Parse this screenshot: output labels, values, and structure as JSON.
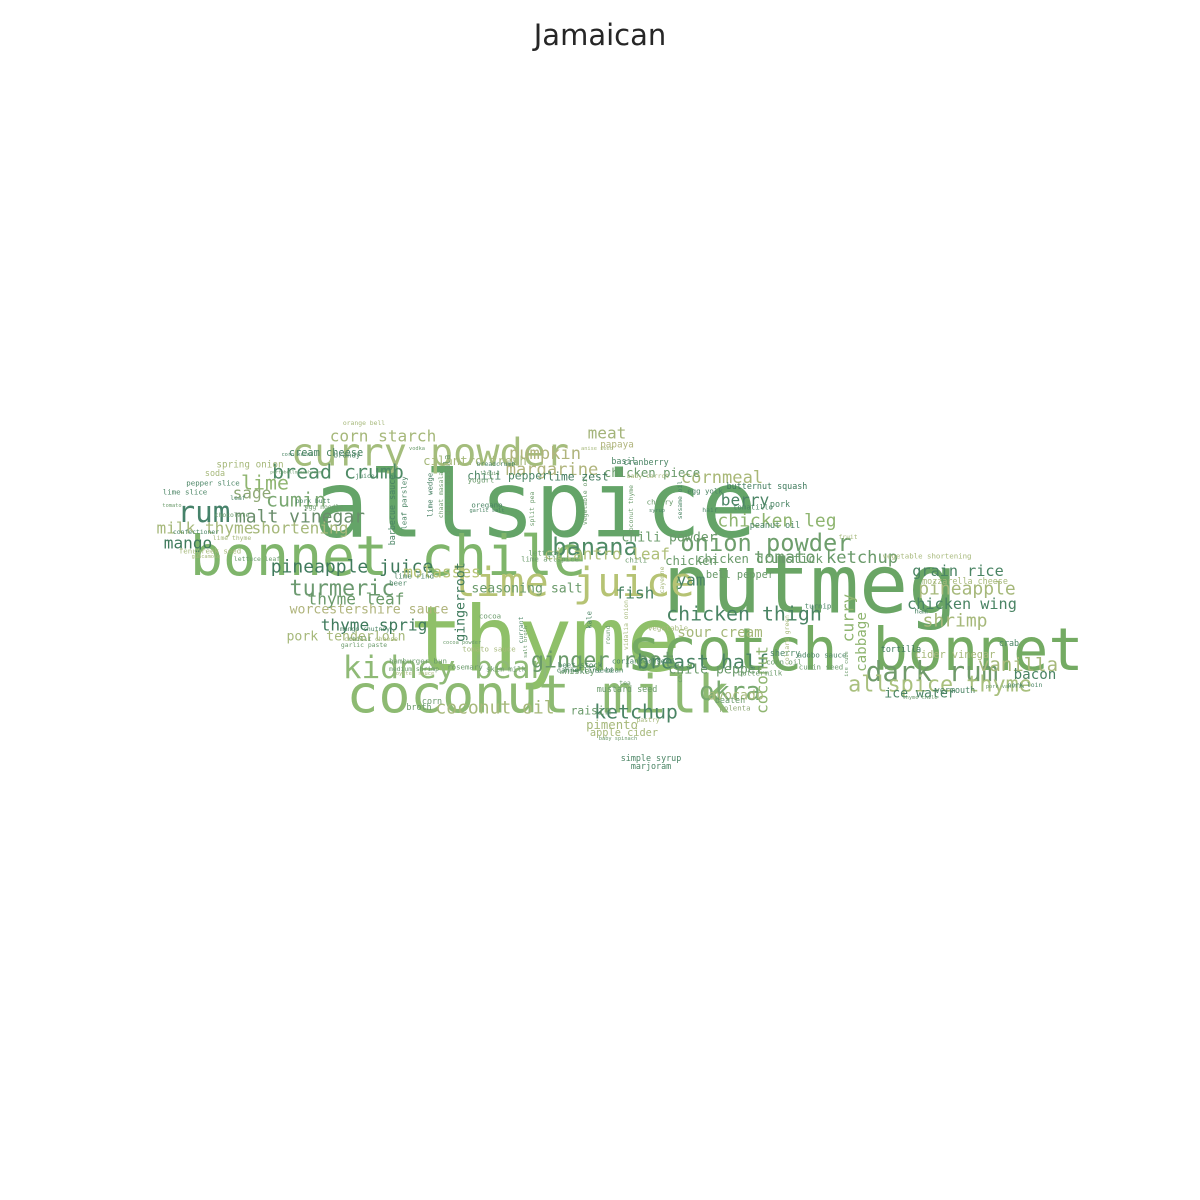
{
  "title": "Jamaican",
  "palette": [
    "#3f7a5c",
    "#5e9e62",
    "#74aa6a",
    "#8fba76",
    "#a6c27f",
    "#b9bf82",
    "#95b66e",
    "#4f8b66"
  ],
  "words": [
    {
      "text": "allspice",
      "weight": 100,
      "color": "#64a468"
    },
    {
      "text": "thyme",
      "weight": 98,
      "color": "#8fc069"
    },
    {
      "text": "nutmeg",
      "weight": 88,
      "color": "#6aa565"
    },
    {
      "text": "scotch bonnet",
      "weight": 62,
      "color": "#74ab63"
    },
    {
      "text": "bonnet chile",
      "weight": 58,
      "color": "#7fb56b"
    },
    {
      "text": "coconut milk",
      "weight": 56,
      "color": "#8dba72"
    },
    {
      "text": "lime juice",
      "weight": 42,
      "color": "#b6c374"
    },
    {
      "text": "curry powder",
      "weight": 40,
      "color": "#a4bd7c"
    },
    {
      "text": "kidney bean",
      "weight": 32,
      "color": "#8fba76"
    },
    {
      "text": "dark rum",
      "weight": 28,
      "color": "#6f9a6a"
    },
    {
      "text": "rum",
      "weight": 30,
      "color": "#46826a"
    },
    {
      "text": "okra",
      "weight": 26,
      "color": "#79aa70"
    },
    {
      "text": "onion powder",
      "weight": 24,
      "color": "#6e9e6c"
    },
    {
      "text": "banana",
      "weight": 24,
      "color": "#4f8b66"
    },
    {
      "text": "ginger root",
      "weight": 22,
      "color": "#6a9a6a"
    },
    {
      "text": "turmeric",
      "weight": 22,
      "color": "#6c9a70"
    },
    {
      "text": "allspice thyme",
      "weight": 22,
      "color": "#a9c07e"
    },
    {
      "text": "bread crumb",
      "weight": 20,
      "color": "#4f8b66"
    },
    {
      "text": "cumin",
      "weight": 20,
      "color": "#7aa872"
    },
    {
      "text": "lime",
      "weight": 20,
      "color": "#8fb570"
    },
    {
      "text": "breast half",
      "weight": 20,
      "color": "#4a8464"
    },
    {
      "text": "chicken thigh",
      "weight": 20,
      "color": "#4a8464"
    },
    {
      "text": "ketchup",
      "weight": 20,
      "color": "#4a8464"
    },
    {
      "text": "vanilla",
      "weight": 19,
      "color": "#a6b87a"
    },
    {
      "text": "chicken leg",
      "weight": 18,
      "color": "#8fb570"
    },
    {
      "text": "malt vinegar",
      "weight": 18,
      "color": "#6a8e6c"
    },
    {
      "text": "pineapple juice",
      "weight": 18,
      "color": "#3f7a5c"
    },
    {
      "text": "pineapple",
      "weight": 18,
      "color": "#a6b87a"
    },
    {
      "text": "shrimp",
      "weight": 18,
      "color": "#a6b87a"
    },
    {
      "text": "coconut oil",
      "weight": 18,
      "color": "#a6b87a"
    },
    {
      "text": "tomato ketchup",
      "weight": 17,
      "color": "#6a9a6a"
    },
    {
      "text": "cornmeal",
      "weight": 17,
      "color": "#a9b877"
    },
    {
      "text": "margarine",
      "weight": 17,
      "color": "#b0b47c"
    },
    {
      "text": "pumpkin",
      "weight": 17,
      "color": "#b0b47c"
    },
    {
      "text": "corn starch",
      "weight": 16,
      "color": "#a6b87a"
    },
    {
      "text": "molasses",
      "weight": 16,
      "color": "#b6c374"
    },
    {
      "text": "cilantro leaf",
      "weight": 16,
      "color": "#b0c07a"
    },
    {
      "text": "sage",
      "weight": 16,
      "color": "#8fa876"
    },
    {
      "text": "milk thyme",
      "weight": 16,
      "color": "#a6b87a"
    },
    {
      "text": "shortening",
      "weight": 16,
      "color": "#a6b87a"
    },
    {
      "text": "thyme leaf",
      "weight": 16,
      "color": "#6a9a6a"
    },
    {
      "text": "thyme sprig",
      "weight": 16,
      "color": "#3f7a5c"
    },
    {
      "text": "mango",
      "weight": 16,
      "color": "#3f7a5c"
    },
    {
      "text": "berry",
      "weight": 16,
      "color": "#4a8464"
    },
    {
      "text": "yam",
      "weight": 16,
      "color": "#4a8464"
    },
    {
      "text": "fish",
      "weight": 16,
      "color": "#4a8464"
    },
    {
      "text": "meat",
      "weight": 16,
      "color": "#a4b47a"
    },
    {
      "text": "coconut",
      "weight": 16,
      "color": "#8fb570"
    },
    {
      "text": "curry",
      "weight": 16,
      "color": "#8fb570"
    },
    {
      "text": "cabbage",
      "weight": 14,
      "color": "#8fb570"
    },
    {
      "text": "chicken wing",
      "weight": 15,
      "color": "#4a8464"
    },
    {
      "text": "grain rice",
      "weight": 15,
      "color": "#4a8464"
    },
    {
      "text": "bacon",
      "weight": 14,
      "color": "#4a8464"
    },
    {
      "text": "sour cream",
      "weight": 14,
      "color": "#a6b87a"
    },
    {
      "text": "chili powder",
      "weight": 13,
      "color": "#6a9a6a"
    },
    {
      "text": "chile pepper",
      "weight": 13,
      "color": "#6a9a6a"
    },
    {
      "text": "avocado",
      "weight": 13,
      "color": "#a6b87a"
    },
    {
      "text": "seasoning salt",
      "weight": 13,
      "color": "#6a9a6a"
    },
    {
      "text": "pork tenderloin",
      "weight": 13,
      "color": "#a6b87a"
    },
    {
      "text": "worcestershire sauce",
      "weight": 13,
      "color": "#b0b47c"
    },
    {
      "text": "ice water",
      "weight": 13,
      "color": "#4a8464"
    },
    {
      "text": "pimento",
      "weight": 12,
      "color": "#a6b87a"
    },
    {
      "text": "chicken drumstick",
      "weight": 12,
      "color": "#6a9a6a"
    },
    {
      "text": "chicken",
      "weight": 12,
      "color": "#6a9a6a"
    },
    {
      "text": "cilantro fresh",
      "weight": 12,
      "color": "#a6b87a"
    },
    {
      "text": "chicken piece",
      "weight": 12,
      "color": "#6a9a6a"
    },
    {
      "text": "gingerroot",
      "weight": 13,
      "color": "#3f7a5c"
    },
    {
      "text": "chili pepper",
      "weight": 11,
      "color": "#4a8464"
    },
    {
      "text": "lime zest",
      "weight": 11,
      "color": "#3f7a5c"
    },
    {
      "text": "raisin",
      "weight": 11,
      "color": "#6a9a6a"
    },
    {
      "text": "apple cider",
      "weight": 10,
      "color": "#a6b87a"
    },
    {
      "text": "cider vinegar",
      "weight": 10,
      "color": "#a6b87a"
    },
    {
      "text": "bell pepper",
      "weight": 10,
      "color": "#6a9a6a"
    },
    {
      "text": "cream cheese",
      "weight": 10,
      "color": "#4a8464"
    },
    {
      "text": "garam masala",
      "weight": 8,
      "color": "#6a9a6a"
    },
    {
      "text": "spring onion",
      "weight": 9,
      "color": "#a6b87a"
    },
    {
      "text": "papaya",
      "weight": 9,
      "color": "#b0b47c"
    },
    {
      "text": "cranberry",
      "weight": 8,
      "color": "#4a8464"
    },
    {
      "text": "vermouth",
      "weight": 8,
      "color": "#4a8464"
    },
    {
      "text": "whiskey",
      "weight": 8,
      "color": "#6a9a6a"
    },
    {
      "text": "broth",
      "weight": 8,
      "color": "#6a9a6a"
    },
    {
      "text": "corn",
      "weight": 8,
      "color": "#6a9a6a"
    },
    {
      "text": "marjoram",
      "weight": 8,
      "color": "#4a8464"
    },
    {
      "text": "simple syrup",
      "weight": 8,
      "color": "#4a8464"
    },
    {
      "text": "soda",
      "weight": 8,
      "color": "#a6b87a"
    },
    {
      "text": "mustard seed",
      "weight": 8,
      "color": "#6a9a6a"
    },
    {
      "text": "beaten",
      "weight": 8,
      "color": "#6a9a6a"
    },
    {
      "text": "polenta",
      "weight": 7,
      "color": "#8fa876"
    },
    {
      "text": "butternut squash",
      "weight": 8,
      "color": "#3f7a5c"
    },
    {
      "text": "peanut oil",
      "weight": 8,
      "color": "#4a8464"
    },
    {
      "text": "mozzarella cheese",
      "weight": 8,
      "color": "#a6b87a"
    },
    {
      "text": "vegetable shortening",
      "weight": 7,
      "color": "#a6b87a"
    },
    {
      "text": "tortilla",
      "weight": 8,
      "color": "#3f7a5c"
    },
    {
      "text": "crab",
      "weight": 8,
      "color": "#4a8464"
    },
    {
      "text": "ham",
      "weight": 7,
      "color": "#4a8464"
    },
    {
      "text": "cherry",
      "weight": 7,
      "color": "#6a9a6a"
    },
    {
      "text": "pork",
      "weight": 8,
      "color": "#4a8464"
    },
    {
      "text": "sherry",
      "weight": 8,
      "color": "#4a8464"
    },
    {
      "text": "adobo sauce",
      "weight": 7,
      "color": "#4a8464"
    },
    {
      "text": "cumin seed",
      "weight": 7,
      "color": "#6a9a6a"
    },
    {
      "text": "corn oil",
      "weight": 7,
      "color": "#6a9a6a"
    },
    {
      "text": "buttermilk",
      "weight": 7,
      "color": "#6a9a6a"
    },
    {
      "text": "tomatillo",
      "weight": 7,
      "color": "#4a8464"
    },
    {
      "text": "turnip",
      "weight": 7,
      "color": "#4a8464"
    },
    {
      "text": "egg yolk",
      "weight": 7,
      "color": "#4a8464"
    },
    {
      "text": "basil",
      "weight": 8,
      "color": "#4a8464"
    },
    {
      "text": "vegetable",
      "weight": 7,
      "color": "#a6b87a"
    },
    {
      "text": "kale",
      "weight": 7,
      "color": "#4a8464"
    },
    {
      "text": "lettuce",
      "weight": 7,
      "color": "#6a9a6a"
    },
    {
      "text": "lime allspice",
      "weight": 7,
      "color": "#6a9a6a"
    },
    {
      "text": "cannellini bean",
      "weight": 7,
      "color": "#4a8464"
    },
    {
      "text": "coriander seed",
      "weight": 7,
      "color": "#4a8464"
    },
    {
      "text": "beet stock",
      "weight": 7,
      "color": "#4a8464"
    },
    {
      "text": "seed",
      "weight": 7,
      "color": "#4a8464"
    },
    {
      "text": "chili",
      "weight": 7,
      "color": "#6a9a6a"
    },
    {
      "text": "rosemary",
      "weight": 7,
      "color": "#6a9a6a"
    },
    {
      "text": "skim milk",
      "weight": 7,
      "color": "#6a9a6a"
    },
    {
      "text": "medium shrimp",
      "weight": 6,
      "color": "#6a9a6a"
    },
    {
      "text": "hamburger bun",
      "weight": 7,
      "color": "#6a9a6a"
    },
    {
      "text": "tomato sauce",
      "weight": 7,
      "color": "#a6b87a"
    },
    {
      "text": "cocoa",
      "weight": 7,
      "color": "#6a9a6a"
    },
    {
      "text": "oregano",
      "weight": 7,
      "color": "#4a8464"
    },
    {
      "text": "yogurt",
      "weight": 7,
      "color": "#6a9a6a"
    },
    {
      "text": "breadcrumb",
      "weight": 6,
      "color": "#4a8464"
    },
    {
      "text": "lime rind",
      "weight": 7,
      "color": "#4a8464"
    },
    {
      "text": "beer",
      "weight": 7,
      "color": "#4a8464"
    },
    {
      "text": "mango chutney",
      "weight": 6,
      "color": "#4a8464"
    },
    {
      "text": "cheddar cheese",
      "weight": 6,
      "color": "#a6b87a"
    },
    {
      "text": "chilli",
      "weight": 6,
      "color": "#6a9a6a"
    },
    {
      "text": "garlic paste",
      "weight": 6,
      "color": "#6a9a6a"
    },
    {
      "text": "lettuce leaf",
      "weight": 6,
      "color": "#6a9a6a"
    },
    {
      "text": "fenugreek seed",
      "weight": 7,
      "color": "#a6b87a"
    },
    {
      "text": "chocolate",
      "weight": 6,
      "color": "#6a9a6a"
    },
    {
      "text": "confectioner",
      "weight": 6,
      "color": "#4a8464"
    },
    {
      "text": "lime thyme",
      "weight": 6,
      "color": "#a6b87a"
    },
    {
      "text": "pepper slice",
      "weight": 7,
      "color": "#4a8464"
    },
    {
      "text": "lime slice",
      "weight": 7,
      "color": "#4a8464"
    },
    {
      "text": "leaf",
      "weight": 6,
      "color": "#4a8464"
    },
    {
      "text": "egg noodle",
      "weight": 6,
      "color": "#6a9a6a"
    },
    {
      "text": "pork butt",
      "weight": 6,
      "color": "#4a8464"
    },
    {
      "text": "brandy",
      "weight": 7,
      "color": "#4a8464"
    },
    {
      "text": "orange bell",
      "weight": 6,
      "color": "#a6b87a"
    },
    {
      "text": "corn kernel",
      "weight": 5,
      "color": "#4a8464"
    },
    {
      "text": "tomato",
      "weight": 5,
      "color": "#6a9a6a"
    },
    {
      "text": "guacamole",
      "weight": 5,
      "color": "#a6b87a"
    },
    {
      "text": "juice",
      "weight": 6,
      "color": "#4a8464"
    },
    {
      "text": "barbecue sauce",
      "weight": 8,
      "color": "#4a8464"
    },
    {
      "text": "leaf parsley",
      "weight": 7,
      "color": "#4a8464"
    },
    {
      "text": "lime wedge",
      "weight": 7,
      "color": "#3f7a5c"
    },
    {
      "text": "chaat masala",
      "weight": 6,
      "color": "#6a9a6a"
    },
    {
      "text": "garlic salt",
      "weight": 5,
      "color": "#4a8464"
    },
    {
      "text": "split pea",
      "weight": 6,
      "color": "#6a9a6a"
    },
    {
      "text": "vegetable oil",
      "weight": 6,
      "color": "#6a9a6a"
    },
    {
      "text": "coconut thyme",
      "weight": 6,
      "color": "#6a9a6a"
    },
    {
      "text": "sesame oil",
      "weight": 6,
      "color": "#4a8464"
    },
    {
      "text": "hair",
      "weight": 6,
      "color": "#4a8464"
    },
    {
      "text": "baby carrot",
      "weight": 6,
      "color": "#a6b87a"
    },
    {
      "text": "vidalia onion",
      "weight": 6,
      "color": "#a6b87a"
    },
    {
      "text": "cayenne",
      "weight": 6,
      "color": "#a6b87a"
    },
    {
      "text": "collard green",
      "weight": 6,
      "color": "#a6b87a"
    },
    {
      "text": "ice cube",
      "weight": 5,
      "color": "#6a9a6a"
    },
    {
      "text": "round",
      "weight": 6,
      "color": "#6a9a6a"
    },
    {
      "text": "chip",
      "weight": 6,
      "color": "#6a9a6a"
    },
    {
      "text": "currant",
      "weight": 6,
      "color": "#4a8464"
    },
    {
      "text": "salt broth",
      "weight": 5,
      "color": "#6a9a6a"
    },
    {
      "text": "pastry",
      "weight": 6,
      "color": "#a6b87a"
    },
    {
      "text": "tea",
      "weight": 6,
      "color": "#6a9a6a"
    },
    {
      "text": "baby spinach",
      "weight": 5,
      "color": "#6a9a6a"
    },
    {
      "text": "fruit",
      "weight": 6,
      "color": "#a6b87a"
    },
    {
      "text": "pork loin",
      "weight": 6,
      "color": "#4a8464"
    },
    {
      "text": "pork vanilla",
      "weight": 5,
      "color": "#6a9a6a"
    },
    {
      "text": "thyme chile",
      "weight": 5,
      "color": "#6a9a6a"
    },
    {
      "text": "syrup",
      "weight": 5,
      "color": "#4a8464"
    },
    {
      "text": "vodka",
      "weight": 5,
      "color": "#6a9a6a"
    },
    {
      "text": "anise seed",
      "weight": 5,
      "color": "#a6b87a"
    },
    {
      "text": "oyster sauce",
      "weight": 5,
      "color": "#a6b87a"
    },
    {
      "text": "portobello mushroom",
      "weight": 4,
      "color": "#6a9a6a"
    },
    {
      "text": "cocoa powder",
      "weight": 5,
      "color": "#6a9a6a"
    },
    {
      "text": "liquid",
      "weight": 5,
      "color": "#6a9a6a"
    }
  ]
}
